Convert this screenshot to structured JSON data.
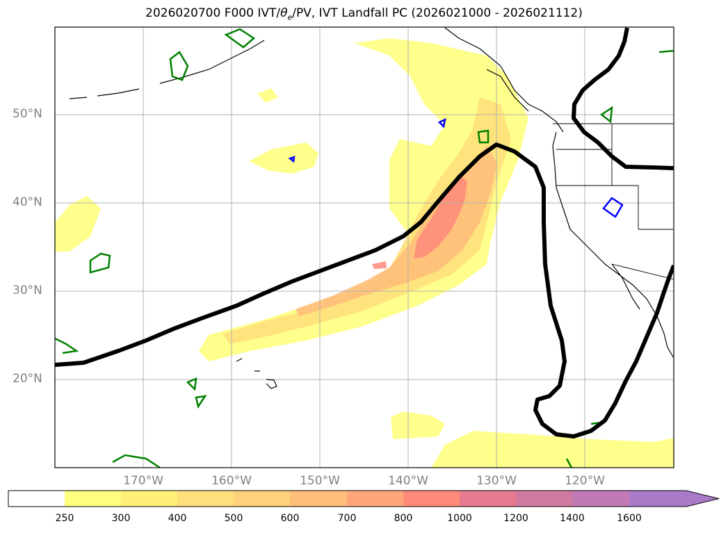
{
  "title": {
    "prefix": "2026020700 F000 IVT/",
    "theta": "θ",
    "theta_sub": "e",
    "suffix": "/PV, IVT Landfall PC (2026021000 - 2026021112)"
  },
  "lat_labels": [
    "50°N",
    "40°N",
    "30°N",
    "20°N"
  ],
  "lon_labels": [
    "170°W",
    "160°W",
    "150°W",
    "140°W",
    "130°W",
    "120°W"
  ],
  "colorbar": {
    "ticks": [
      "250",
      "300",
      "400",
      "500",
      "600",
      "700",
      "800",
      "1000",
      "1200",
      "1400",
      "1600"
    ],
    "colors": [
      "#ffffff",
      "#ffff80",
      "#fff07a",
      "#ffe07a",
      "#ffd17a",
      "#ffbe7a",
      "#ffa67a",
      "#ff8a7a",
      "#e77a90",
      "#d17aa0",
      "#c27ab6",
      "#a97ac8"
    ],
    "extend_color": "#a97ac8"
  },
  "legend_colors": {
    "pv_contour": "#008000",
    "theta_contour": "#0000ff",
    "landfall_pc": "#000000",
    "coastline": "#000000"
  }
}
